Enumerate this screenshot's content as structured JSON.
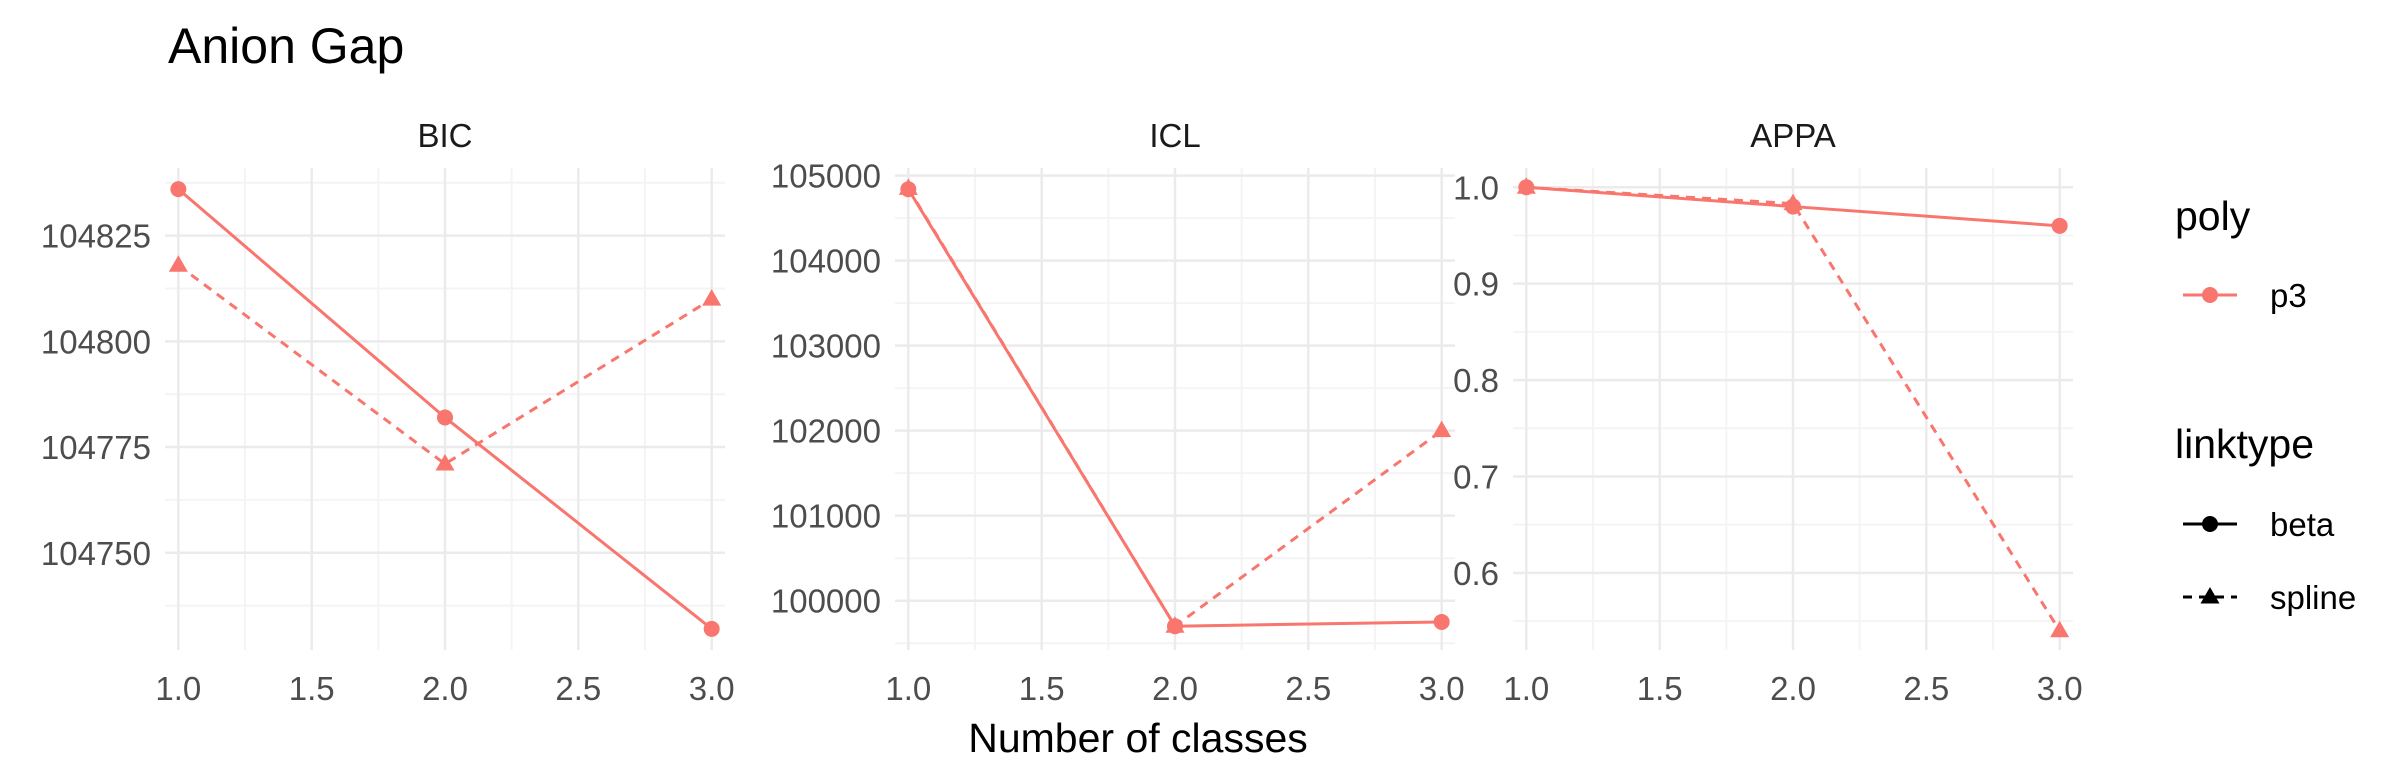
{
  "title": "Anion Gap",
  "xlabel": "Number of classes",
  "colors": {
    "series": "#F8766D",
    "grid_major": "#ebebeb",
    "grid_minor": "#f4f4f4",
    "legend_key": "#000000"
  },
  "legend": {
    "poly": {
      "title": "poly",
      "items": [
        {
          "label": "p3",
          "shape": "circle"
        }
      ]
    },
    "linktype": {
      "title": "linktype",
      "items": [
        {
          "label": "beta",
          "line": "solid",
          "shape": "circle"
        },
        {
          "label": "spline",
          "line": "dashed",
          "shape": "triangle"
        }
      ]
    }
  },
  "chart_data": [
    {
      "type": "line",
      "facet": "BIC",
      "x_ticks": [
        "1.0",
        "1.5",
        "2.0",
        "2.5",
        "3.0"
      ],
      "xlim": [
        0.95,
        3.05
      ],
      "y_ticks": [
        "104750",
        "104775",
        "104800",
        "104825"
      ],
      "ylim": [
        104727,
        104841
      ],
      "series": [
        {
          "name": "beta",
          "x": [
            1,
            2,
            3
          ],
          "y": [
            104836,
            104782,
            104732
          ]
        },
        {
          "name": "spline",
          "x": [
            1,
            2,
            3
          ],
          "y": [
            104818,
            104771,
            104810
          ]
        }
      ]
    },
    {
      "type": "line",
      "facet": "ICL",
      "x_ticks": [
        "1.0",
        "1.5",
        "2.0",
        "2.5",
        "3.0"
      ],
      "xlim": [
        0.95,
        3.05
      ],
      "y_ticks": [
        "100000",
        "101000",
        "102000",
        "103000",
        "104000",
        "105000"
      ],
      "ylim": [
        99420,
        105090
      ],
      "series": [
        {
          "name": "beta",
          "x": [
            1,
            2,
            3
          ],
          "y": [
            104840,
            99700,
            99750
          ]
        },
        {
          "name": "spline",
          "x": [
            1,
            2,
            3
          ],
          "y": [
            104850,
            99700,
            102000
          ]
        }
      ]
    },
    {
      "type": "line",
      "facet": "APPA",
      "x_ticks": [
        "1.0",
        "1.5",
        "2.0",
        "2.5",
        "3.0"
      ],
      "xlim": [
        0.95,
        3.05
      ],
      "y_ticks": [
        "0.6",
        "0.7",
        "0.8",
        "0.9",
        "1.0"
      ],
      "ylim": [
        0.52,
        1.02
      ],
      "series": [
        {
          "name": "beta",
          "x": [
            1,
            2,
            3
          ],
          "y": [
            1.0,
            0.98,
            0.96
          ]
        },
        {
          "name": "spline",
          "x": [
            1,
            2,
            3
          ],
          "y": [
            1.0,
            0.983,
            0.54
          ]
        }
      ]
    }
  ]
}
